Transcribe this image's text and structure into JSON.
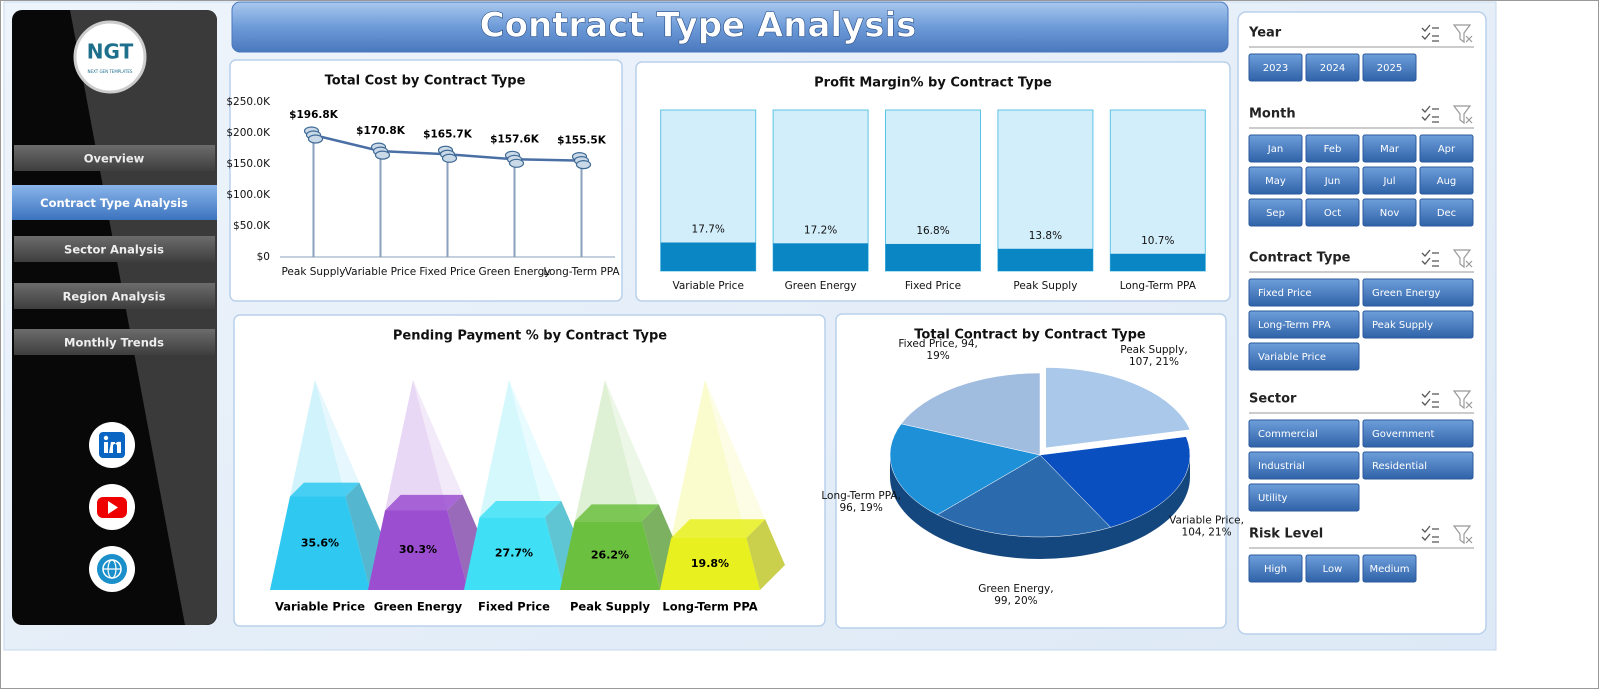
{
  "header": {
    "title": "Contract Type Analysis"
  },
  "sidebar": {
    "logo": {
      "title": "NGT",
      "subtitle": "NEXT GEN TEMPLATES"
    },
    "nav": [
      "Overview",
      "Contract Type Analysis",
      "Sector Analysis",
      "Region Analysis",
      "Monthly Trends"
    ]
  },
  "chart_data": [
    {
      "type": "line",
      "title": "Total Cost by Contract Type",
      "categories": [
        "Peak Supply",
        "Variable Price",
        "Fixed Price",
        "Green Energy",
        "Long-Term PPA"
      ],
      "values": [
        196800,
        170800,
        165700,
        157600,
        155500
      ],
      "value_labels": [
        "$196.8K",
        "$170.8K",
        "$165.7K",
        "$157.6K",
        "$155.5K"
      ],
      "color": "#4a6fa5",
      "ylim": [
        0,
        250000
      ],
      "yticks": [
        {
          "value": 0,
          "label": "$0"
        },
        {
          "value": 50000,
          "label": "$50.0K"
        },
        {
          "value": 100000,
          "label": "$100.0K"
        },
        {
          "value": 150000,
          "label": "$150.0K"
        },
        {
          "value": 200000,
          "label": "$200.0K"
        },
        {
          "value": 250000,
          "label": "$250.0K"
        }
      ]
    },
    {
      "type": "bar",
      "title": "Profit Margin% by Contract Type",
      "categories": [
        "Variable Price",
        "Green Energy",
        "Fixed Price",
        "Peak Supply",
        "Long-Term PPA"
      ],
      "values": [
        17.7,
        17.2,
        16.8,
        13.8,
        10.7
      ],
      "value_labels": [
        "17.7%",
        "17.2%",
        "16.8%",
        "13.8%",
        "10.7%"
      ],
      "color": "#0a86c4",
      "ylim": [
        0,
        100
      ]
    },
    {
      "type": "pyramid",
      "title": "Pending Payment % by Contract Type",
      "categories": [
        "Variable Price",
        "Green Energy",
        "Fixed Price",
        "Peak Supply",
        "Long-Term PPA"
      ],
      "values": [
        35.6,
        30.3,
        27.7,
        26.2,
        19.8
      ],
      "value_labels": [
        "35.6%",
        "30.3%",
        "27.7%",
        "26.2%",
        "19.8%"
      ],
      "colors": [
        "#2ec8f0",
        "#9b4fd0",
        "#3fe0f5",
        "#6cc040",
        "#e8f020"
      ],
      "ylim": [
        0,
        80
      ]
    },
    {
      "type": "pie",
      "title": "Total Contract by Contract Type",
      "categories": [
        "Peak Supply",
        "Variable Price",
        "Green Energy",
        "Long-Term PPA",
        "Fixed Price"
      ],
      "values": [
        107,
        104,
        99,
        96,
        94
      ],
      "percents": [
        21,
        21,
        20,
        19,
        19
      ],
      "value_labels": [
        [
          "Peak Supply,",
          "107, 21%"
        ],
        [
          "Variable Price,",
          "104, 21%"
        ],
        [
          "Green Energy,",
          "99, 20%"
        ],
        [
          "Long-Term PPA,",
          "96, 19%"
        ],
        [
          "Fixed Price, 94,",
          "19%"
        ]
      ],
      "colors": [
        "#a9c8ea",
        "#0a4fbf",
        "#2a6aad",
        "#1e90d8",
        "#a0bde0"
      ]
    }
  ],
  "slicers": [
    {
      "title": "Year",
      "items": [
        "2023",
        "2024",
        "2025"
      ]
    },
    {
      "title": "Month",
      "items": [
        "Jan",
        "Feb",
        "Mar",
        "Apr",
        "May",
        "Jun",
        "Jul",
        "Aug",
        "Sep",
        "Oct",
        "Nov",
        "Dec"
      ]
    },
    {
      "title": "Contract Type",
      "items": [
        "Fixed Price",
        "Green Energy",
        "Long-Term PPA",
        "Peak Supply",
        "Variable Price"
      ]
    },
    {
      "title": "Sector",
      "items": [
        "Commercial",
        "Government",
        "Industrial",
        "Residential",
        "Utility"
      ]
    },
    {
      "title": "Risk Level",
      "items": [
        "High",
        "Low",
        "Medium"
      ]
    }
  ]
}
